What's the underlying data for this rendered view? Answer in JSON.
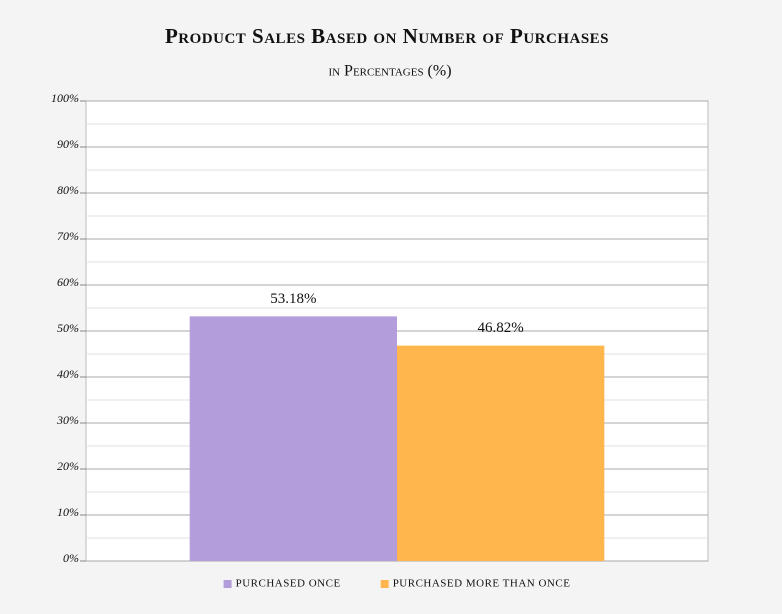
{
  "chart_data": {
    "type": "bar",
    "title": "Product Sales Based on Number of Purchases",
    "subtitle": "in Percentages (%)",
    "categories": [
      null
    ],
    "series": [
      {
        "name": "PURCHASED ONCE",
        "color": "#b39ddb",
        "values": [
          53.18
        ],
        "value_labels": [
          "53.18%"
        ]
      },
      {
        "name": "PURCHASED MORE THAN ONCE",
        "color": "#ffb74d",
        "values": [
          46.82
        ],
        "value_labels": [
          "46.82%"
        ]
      }
    ],
    "ylim": [
      0,
      100
    ],
    "yticks": [
      {
        "value": 0,
        "label": "0%"
      },
      {
        "value": 10,
        "label": "10%"
      },
      {
        "value": 20,
        "label": "20%"
      },
      {
        "value": 30,
        "label": "30%"
      },
      {
        "value": 40,
        "label": "40%"
      },
      {
        "value": 50,
        "label": "50%"
      },
      {
        "value": 60,
        "label": "60%"
      },
      {
        "value": 70,
        "label": "70%"
      },
      {
        "value": 80,
        "label": "80%"
      },
      {
        "value": 90,
        "label": "90%"
      },
      {
        "value": 100,
        "label": "100%"
      }
    ],
    "minor_yticks": [
      5,
      15,
      25,
      35,
      45,
      55,
      65,
      75,
      85,
      95
    ],
    "grid": true,
    "legend": "bottom"
  }
}
